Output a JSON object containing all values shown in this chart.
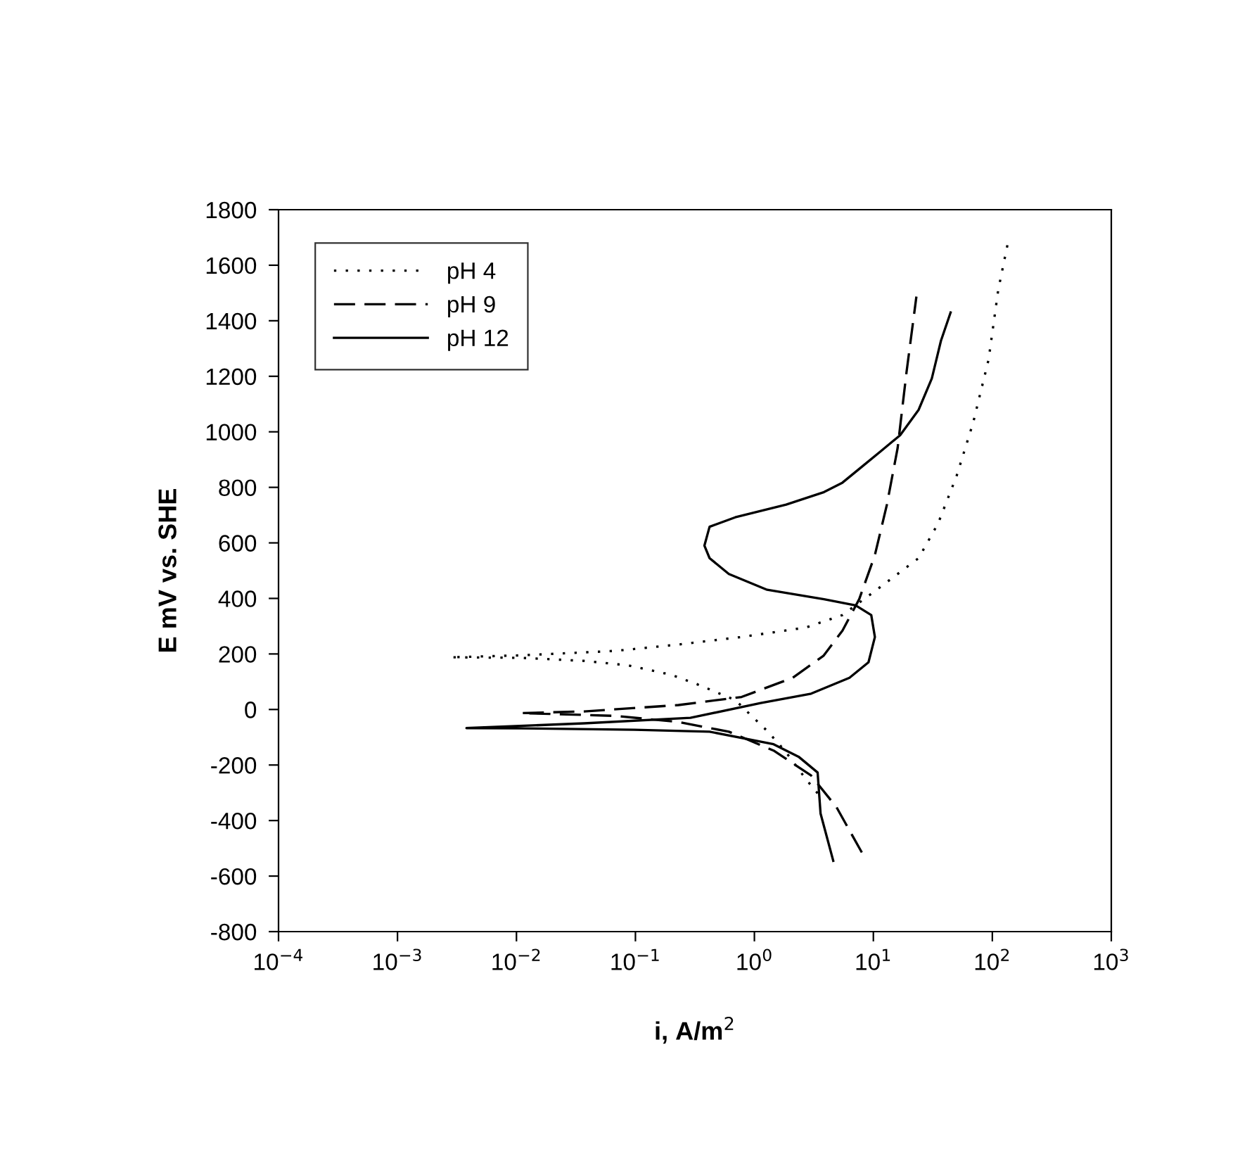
{
  "chart_data": {
    "type": "line",
    "xlabel": "i, A/m$^{2}$",
    "ylabel": "E mV vs. SHE",
    "log": "x",
    "grid": false,
    "legend": "top left",
    "marker": "none",
    "xlim": [
      0.0001,
      1000
    ],
    "ylim": [
      -800,
      1800
    ],
    "xticks": [
      {
        "value": 0.0001,
        "label": "10$^{−4}$"
      },
      {
        "value": 0.001,
        "label": "10$^{−3}$"
      },
      {
        "value": 0.01,
        "label": "10$^{−2}$"
      },
      {
        "value": 0.1,
        "label": "10$^{−1}$"
      },
      {
        "value": 1,
        "label": "10$^{0}$"
      },
      {
        "value": 10,
        "label": "10$^{1}$"
      },
      {
        "value": 100,
        "label": "10$^{2}$"
      },
      {
        "value": 1000,
        "label": "10$^{3}$"
      }
    ],
    "yticks": [
      -800,
      -600,
      -400,
      -200,
      0,
      200,
      400,
      600,
      800,
      1000,
      1200,
      1400,
      1600,
      1800
    ],
    "series": [
      {
        "name": "pH 4",
        "color": "#000000",
        "line_style": "dotted",
        "x": [
          3.4,
          2.7,
          1.8,
          1.3,
          0.69,
          0.33,
          0.2,
          0.087,
          0.037,
          0.011,
          0.0028,
          0.011,
          0.068,
          0.23,
          0.78,
          2.7,
          5.5,
          11.6,
          24,
          35,
          50,
          69,
          93,
          112,
          134
        ],
        "values": [
          -302,
          -250,
          -148,
          -80,
          34,
          91,
          125,
          159,
          175,
          186,
          188,
          195,
          211,
          234,
          261,
          295,
          340,
          443,
          545,
          670,
          840,
          1033,
          1260,
          1510,
          1673
        ]
      },
      {
        "name": "pH 9",
        "color": "#000000",
        "line_style": "dashed",
        "x": [
          8.0,
          4.9,
          3.0,
          1.45,
          0.61,
          0.23,
          0.068,
          0.011,
          0.037,
          0.23,
          0.78,
          2.1,
          3.8,
          5.5,
          7.6,
          10.3,
          13,
          16,
          19,
          23
        ],
        "values": [
          -515,
          -352,
          -238,
          -148,
          -80,
          -45,
          -23,
          -13,
          -7,
          16,
          45,
          114,
          193,
          284,
          397,
          556,
          738,
          942,
          1215,
          1487
        ]
      },
      {
        "name": "pH 12",
        "color": "#000000",
        "line_style": "solid",
        "x": [
          4.6,
          3.6,
          3.4,
          2.35,
          1.45,
          0.42,
          0.098,
          0.011,
          0.0038,
          0.037,
          0.29,
          1.13,
          3.0,
          6.3,
          9.1,
          10.3,
          9.6,
          7.1,
          3.85,
          1.28,
          0.61,
          0.42,
          0.38,
          0.42,
          0.69,
          1.85,
          3.85,
          5.5,
          8.0,
          11.6,
          16.8,
          24,
          31,
          37,
          44.6
        ],
        "values": [
          -545,
          -375,
          -227,
          -170,
          -125,
          -80,
          -73,
          -68,
          -67,
          -50,
          -30,
          23,
          57,
          114,
          170,
          261,
          340,
          375,
          397,
          431,
          488,
          545,
          590,
          658,
          692,
          738,
          783,
          817,
          874,
          931,
          988,
          1079,
          1192,
          1328,
          1430
        ]
      }
    ]
  }
}
